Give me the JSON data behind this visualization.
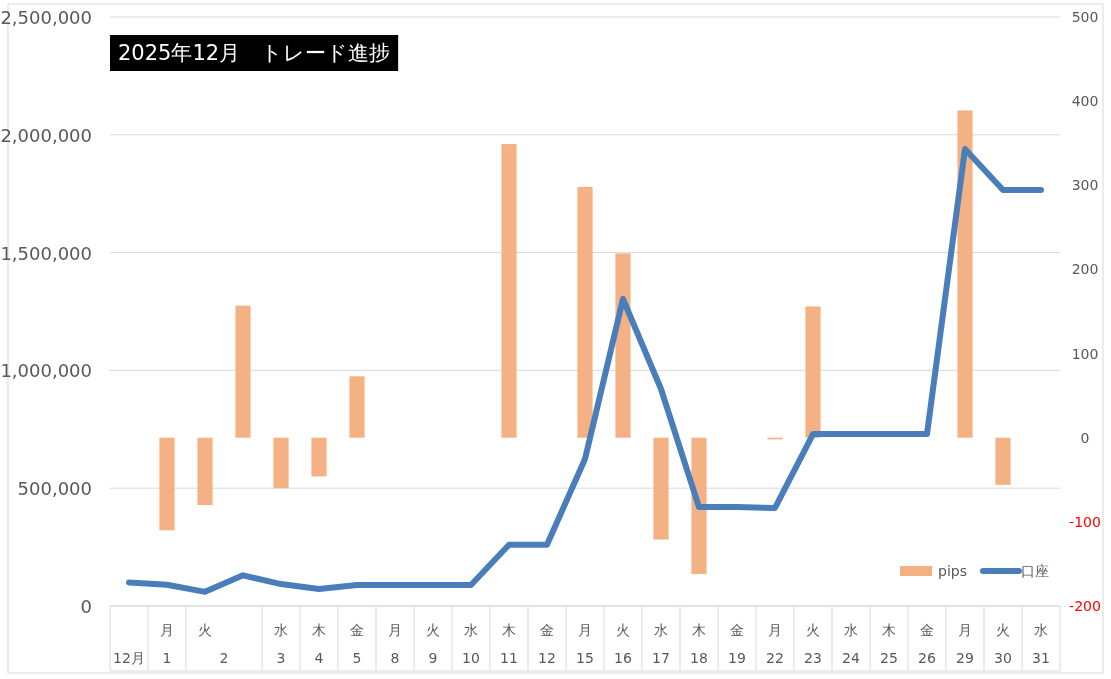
{
  "chart_data": {
    "type": "bar",
    "title": "2025年12月　トレード進捗",
    "categories": [
      "\n12月",
      "月\n1",
      "火\n2",
      null,
      "水\n3",
      "木\n4",
      "金\n5",
      "月\n8",
      "火\n9",
      "水\n10",
      "木\n11",
      "金\n12",
      "月\n15",
      "火\n16",
      "水\n17",
      "木\n18",
      "金\n19",
      "月\n22",
      "火\n23",
      "水\n24",
      "木\n25",
      "金\n26",
      "月\n29",
      "火\n30",
      "水\n31"
    ],
    "series": [
      {
        "name": "pips",
        "axis": "y2",
        "color": "#f4b183",
        "values": [
          null,
          -110,
          -80,
          157,
          -60,
          -46,
          73,
          null,
          null,
          null,
          349,
          null,
          298,
          219,
          -121,
          -162,
          null,
          -2,
          156,
          null,
          null,
          null,
          389,
          -56,
          null
        ]
      },
      {
        "name": "口座",
        "type": "line",
        "axis": "y",
        "color": "#4a7ebb",
        "values": [
          100000,
          90000,
          60000,
          130000,
          93000,
          72000,
          89000,
          89000,
          89000,
          89000,
          260000,
          260000,
          624000,
          1303000,
          921000,
          420000,
          420000,
          416000,
          730000,
          730000,
          730000,
          730000,
          1940000,
          1766000,
          1766000
        ]
      }
    ],
    "ylim": [
      0,
      2500000
    ],
    "yticks": [
      {
        "value": 0,
        "label": "0"
      },
      {
        "value": 500000,
        "label": "500,000"
      },
      {
        "value": 1000000,
        "label": "1,000,000"
      },
      {
        "value": 1500000,
        "label": "1,500,000"
      },
      {
        "value": 2000000,
        "label": "2,000,000"
      },
      {
        "value": 2500000,
        "label": "2,500,000"
      }
    ],
    "y2lim": [
      -200,
      500
    ],
    "y2ticks": [
      -200,
      -100,
      0,
      100,
      200,
      300,
      400,
      500
    ],
    "grid": "y",
    "legend": "bottom right",
    "marker": "none",
    "line_style": "solid"
  }
}
